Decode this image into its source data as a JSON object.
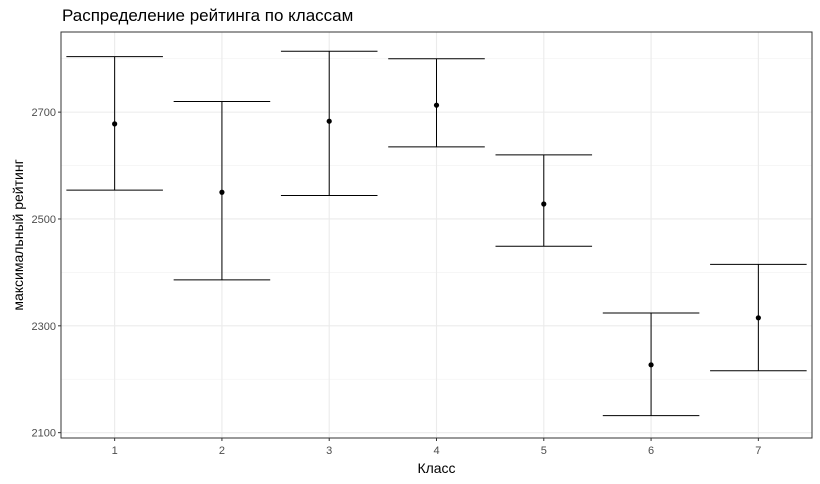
{
  "chart_data": {
    "type": "errorbar",
    "title": "Распределение рейтинга по классам",
    "xlabel": "Класс",
    "ylabel": "максимальный рейтинг",
    "categories": [
      "1",
      "2",
      "3",
      "4",
      "5",
      "6",
      "7"
    ],
    "means": [
      2678,
      2550,
      2683,
      2713,
      2528,
      2227,
      2315
    ],
    "lower": [
      2554,
      2386,
      2544,
      2635,
      2449,
      2132,
      2216
    ],
    "upper": [
      2804,
      2720,
      2814,
      2800,
      2620,
      2324,
      2415
    ],
    "yticks": [
      2100,
      2300,
      2500,
      2700
    ],
    "ylim": [
      2090,
      2850
    ],
    "grid": true,
    "theme": "bw"
  }
}
